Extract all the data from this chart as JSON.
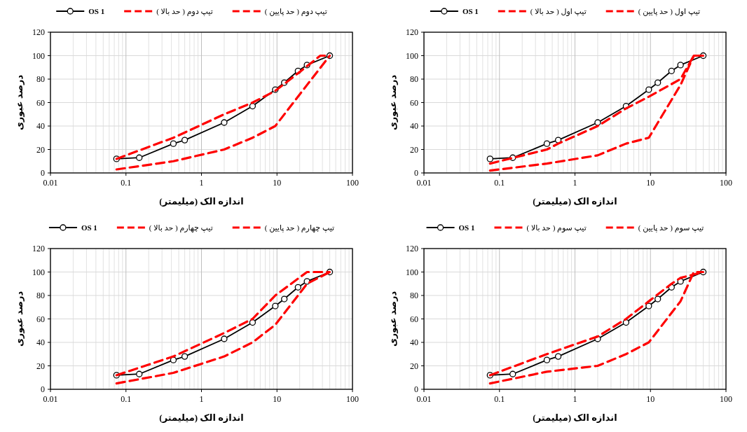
{
  "chart_data": [
    {
      "type": "line",
      "log": "x",
      "xlim": [
        0.01,
        100
      ],
      "ylim": [
        0,
        120
      ],
      "xticks": [
        0.01,
        0.1,
        1,
        10,
        100
      ],
      "yticks": [
        0,
        20,
        40,
        60,
        80,
        100,
        120
      ],
      "xlabel": "اندازه الک (میلیمتر)",
      "ylabel": "درصد عبوری",
      "legend": "top",
      "grid": true,
      "series": [
        {
          "name": "OS 1",
          "color": "#000000",
          "marker": "circle",
          "line_style": "solid",
          "x": [
            0.075,
            0.15,
            0.425,
            0.6,
            2,
            4.75,
            9.5,
            12.5,
            19,
            25,
            50
          ],
          "values": [
            12,
            13,
            25,
            28,
            43,
            57,
            71,
            77,
            87,
            92,
            100
          ]
        },
        {
          "name": "تیپ دوم ( حد بالا )",
          "color": "#ff0000",
          "marker": "none",
          "line_style": "dashed",
          "x": [
            0.075,
            0.425,
            2,
            4.75,
            9.5,
            19,
            37.5,
            50
          ],
          "values": [
            12,
            30,
            50,
            60,
            70,
            85,
            100,
            100
          ]
        },
        {
          "name": "تیپ دوم ( حد پایین )",
          "color": "#ff0000",
          "marker": "none",
          "line_style": "dashed",
          "x": [
            0.075,
            0.425,
            2,
            4.75,
            9.5,
            25,
            50
          ],
          "values": [
            3,
            10,
            20,
            30,
            40,
            75,
            100
          ]
        }
      ]
    },
    {
      "type": "line",
      "log": "x",
      "xlim": [
        0.01,
        100
      ],
      "ylim": [
        0,
        120
      ],
      "xticks": [
        0.01,
        0.1,
        1,
        10,
        100
      ],
      "yticks": [
        0,
        20,
        40,
        60,
        80,
        100,
        120
      ],
      "xlabel": "اندازه الک (میلیمتر)",
      "ylabel": "درصد عبوری",
      "legend": "top",
      "grid": true,
      "series": [
        {
          "name": "OS 1",
          "color": "#000000",
          "marker": "circle",
          "line_style": "solid",
          "x": [
            0.075,
            0.15,
            0.425,
            0.6,
            2,
            4.75,
            9.5,
            12.5,
            19,
            25,
            50
          ],
          "values": [
            12,
            13,
            25,
            28,
            43,
            57,
            71,
            77,
            87,
            92,
            100
          ]
        },
        {
          "name": "تیپ اول ( حد بالا )",
          "color": "#ff0000",
          "marker": "none",
          "line_style": "dashed",
          "x": [
            0.075,
            0.425,
            0.6,
            2,
            4.75,
            9.5,
            25,
            37.5,
            50
          ],
          "values": [
            8,
            20,
            25,
            40,
            55,
            65,
            80,
            100,
            100
          ]
        },
        {
          "name": "تیپ اول ( حد پایین )",
          "color": "#ff0000",
          "marker": "none",
          "line_style": "dashed",
          "x": [
            0.075,
            0.425,
            2,
            4.75,
            9.5,
            25,
            37.5,
            50
          ],
          "values": [
            2,
            8,
            15,
            25,
            30,
            75,
            100,
            100
          ]
        }
      ]
    },
    {
      "type": "line",
      "log": "x",
      "xlim": [
        0.01,
        100
      ],
      "ylim": [
        0,
        120
      ],
      "xticks": [
        0.01,
        0.1,
        1,
        10,
        100
      ],
      "yticks": [
        0,
        20,
        40,
        60,
        80,
        100,
        120
      ],
      "xlabel": "اندازه الک (میلیمتر)",
      "ylabel": "درصد عبوری",
      "legend": "top",
      "grid": true,
      "series": [
        {
          "name": "OS 1",
          "color": "#000000",
          "marker": "circle",
          "line_style": "solid",
          "x": [
            0.075,
            0.15,
            0.425,
            0.6,
            2,
            4.75,
            9.5,
            12.5,
            19,
            25,
            50
          ],
          "values": [
            12,
            13,
            25,
            28,
            43,
            57,
            71,
            77,
            87,
            92,
            100
          ]
        },
        {
          "name": "تیپ چهارم ( حد بالا )",
          "color": "#ff0000",
          "marker": "none",
          "line_style": "dashed",
          "x": [
            0.075,
            0.425,
            2,
            4.75,
            9.5,
            25,
            50
          ],
          "values": [
            12,
            28,
            48,
            60,
            80,
            100,
            100
          ]
        },
        {
          "name": "تیپ چهارم ( حد پایین )",
          "color": "#ff0000",
          "marker": "none",
          "line_style": "dashed",
          "x": [
            0.075,
            0.425,
            2,
            4.75,
            9.5,
            19,
            25,
            50
          ],
          "values": [
            5,
            14,
            28,
            40,
            55,
            80,
            90,
            100
          ]
        }
      ]
    },
    {
      "type": "line",
      "log": "x",
      "xlim": [
        0.01,
        100
      ],
      "ylim": [
        0,
        120
      ],
      "xticks": [
        0.01,
        0.1,
        1,
        10,
        100
      ],
      "yticks": [
        0,
        20,
        40,
        60,
        80,
        100,
        120
      ],
      "xlabel": "اندازه الک (میلیمتر)",
      "ylabel": "درصد عبوری",
      "legend": "top",
      "grid": true,
      "series": [
        {
          "name": "OS 1",
          "color": "#000000",
          "marker": "circle",
          "line_style": "solid",
          "x": [
            0.075,
            0.15,
            0.425,
            0.6,
            2,
            4.75,
            9.5,
            12.5,
            19,
            25,
            50
          ],
          "values": [
            12,
            13,
            25,
            28,
            43,
            57,
            71,
            77,
            87,
            92,
            100
          ]
        },
        {
          "name": "تیپ سوم ( حد بالا )",
          "color": "#ff0000",
          "marker": "none",
          "line_style": "dashed",
          "x": [
            0.075,
            0.425,
            2,
            4.75,
            9.5,
            19,
            25,
            50
          ],
          "values": [
            12,
            30,
            45,
            60,
            75,
            90,
            95,
            100
          ]
        },
        {
          "name": "تیپ سوم ( حد پایین )",
          "color": "#ff0000",
          "marker": "none",
          "line_style": "dashed",
          "x": [
            0.075,
            0.425,
            2,
            4.75,
            9.5,
            25,
            37.5,
            50
          ],
          "values": [
            5,
            15,
            20,
            30,
            40,
            75,
            100,
            100
          ]
        }
      ]
    }
  ]
}
